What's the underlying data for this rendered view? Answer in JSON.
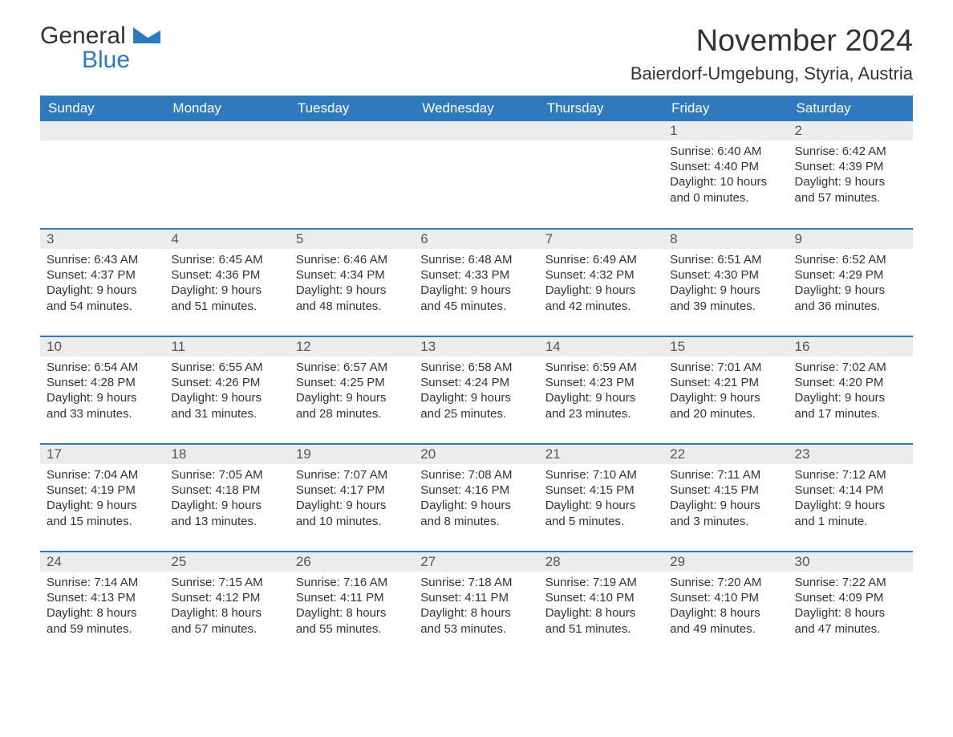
{
  "logo": {
    "text1": "General",
    "text2": "Blue",
    "color_general": "#333333",
    "color_blue": "#2c7abf",
    "shape_color": "#2c7abf"
  },
  "header": {
    "month_title": "November 2024",
    "location": "Baierdorf-Umgebung, Styria, Austria",
    "title_fontsize": 38,
    "location_fontsize": 22,
    "title_color": "#333333"
  },
  "colors": {
    "header_bg": "#3179bd",
    "header_text": "#ffffff",
    "row_border": "#3179bd",
    "daynum_bg": "#ececec",
    "daynum_text": "#555555",
    "body_text": "#333333",
    "page_bg": "#ffffff"
  },
  "typography": {
    "cell_fontsize": 15,
    "header_fontsize": 17,
    "daynum_fontsize": 17
  },
  "weekdays": [
    "Sunday",
    "Monday",
    "Tuesday",
    "Wednesday",
    "Thursday",
    "Friday",
    "Saturday"
  ],
  "weeks": [
    [
      null,
      null,
      null,
      null,
      null,
      {
        "n": "1",
        "sunrise": "Sunrise: 6:40 AM",
        "sunset": "Sunset: 4:40 PM",
        "day1": "Daylight: 10 hours",
        "day2": "and 0 minutes."
      },
      {
        "n": "2",
        "sunrise": "Sunrise: 6:42 AM",
        "sunset": "Sunset: 4:39 PM",
        "day1": "Daylight: 9 hours",
        "day2": "and 57 minutes."
      }
    ],
    [
      {
        "n": "3",
        "sunrise": "Sunrise: 6:43 AM",
        "sunset": "Sunset: 4:37 PM",
        "day1": "Daylight: 9 hours",
        "day2": "and 54 minutes."
      },
      {
        "n": "4",
        "sunrise": "Sunrise: 6:45 AM",
        "sunset": "Sunset: 4:36 PM",
        "day1": "Daylight: 9 hours",
        "day2": "and 51 minutes."
      },
      {
        "n": "5",
        "sunrise": "Sunrise: 6:46 AM",
        "sunset": "Sunset: 4:34 PM",
        "day1": "Daylight: 9 hours",
        "day2": "and 48 minutes."
      },
      {
        "n": "6",
        "sunrise": "Sunrise: 6:48 AM",
        "sunset": "Sunset: 4:33 PM",
        "day1": "Daylight: 9 hours",
        "day2": "and 45 minutes."
      },
      {
        "n": "7",
        "sunrise": "Sunrise: 6:49 AM",
        "sunset": "Sunset: 4:32 PM",
        "day1": "Daylight: 9 hours",
        "day2": "and 42 minutes."
      },
      {
        "n": "8",
        "sunrise": "Sunrise: 6:51 AM",
        "sunset": "Sunset: 4:30 PM",
        "day1": "Daylight: 9 hours",
        "day2": "and 39 minutes."
      },
      {
        "n": "9",
        "sunrise": "Sunrise: 6:52 AM",
        "sunset": "Sunset: 4:29 PM",
        "day1": "Daylight: 9 hours",
        "day2": "and 36 minutes."
      }
    ],
    [
      {
        "n": "10",
        "sunrise": "Sunrise: 6:54 AM",
        "sunset": "Sunset: 4:28 PM",
        "day1": "Daylight: 9 hours",
        "day2": "and 33 minutes."
      },
      {
        "n": "11",
        "sunrise": "Sunrise: 6:55 AM",
        "sunset": "Sunset: 4:26 PM",
        "day1": "Daylight: 9 hours",
        "day2": "and 31 minutes."
      },
      {
        "n": "12",
        "sunrise": "Sunrise: 6:57 AM",
        "sunset": "Sunset: 4:25 PM",
        "day1": "Daylight: 9 hours",
        "day2": "and 28 minutes."
      },
      {
        "n": "13",
        "sunrise": "Sunrise: 6:58 AM",
        "sunset": "Sunset: 4:24 PM",
        "day1": "Daylight: 9 hours",
        "day2": "and 25 minutes."
      },
      {
        "n": "14",
        "sunrise": "Sunrise: 6:59 AM",
        "sunset": "Sunset: 4:23 PM",
        "day1": "Daylight: 9 hours",
        "day2": "and 23 minutes."
      },
      {
        "n": "15",
        "sunrise": "Sunrise: 7:01 AM",
        "sunset": "Sunset: 4:21 PM",
        "day1": "Daylight: 9 hours",
        "day2": "and 20 minutes."
      },
      {
        "n": "16",
        "sunrise": "Sunrise: 7:02 AM",
        "sunset": "Sunset: 4:20 PM",
        "day1": "Daylight: 9 hours",
        "day2": "and 17 minutes."
      }
    ],
    [
      {
        "n": "17",
        "sunrise": "Sunrise: 7:04 AM",
        "sunset": "Sunset: 4:19 PM",
        "day1": "Daylight: 9 hours",
        "day2": "and 15 minutes."
      },
      {
        "n": "18",
        "sunrise": "Sunrise: 7:05 AM",
        "sunset": "Sunset: 4:18 PM",
        "day1": "Daylight: 9 hours",
        "day2": "and 13 minutes."
      },
      {
        "n": "19",
        "sunrise": "Sunrise: 7:07 AM",
        "sunset": "Sunset: 4:17 PM",
        "day1": "Daylight: 9 hours",
        "day2": "and 10 minutes."
      },
      {
        "n": "20",
        "sunrise": "Sunrise: 7:08 AM",
        "sunset": "Sunset: 4:16 PM",
        "day1": "Daylight: 9 hours",
        "day2": "and 8 minutes."
      },
      {
        "n": "21",
        "sunrise": "Sunrise: 7:10 AM",
        "sunset": "Sunset: 4:15 PM",
        "day1": "Daylight: 9 hours",
        "day2": "and 5 minutes."
      },
      {
        "n": "22",
        "sunrise": "Sunrise: 7:11 AM",
        "sunset": "Sunset: 4:15 PM",
        "day1": "Daylight: 9 hours",
        "day2": "and 3 minutes."
      },
      {
        "n": "23",
        "sunrise": "Sunrise: 7:12 AM",
        "sunset": "Sunset: 4:14 PM",
        "day1": "Daylight: 9 hours",
        "day2": "and 1 minute."
      }
    ],
    [
      {
        "n": "24",
        "sunrise": "Sunrise: 7:14 AM",
        "sunset": "Sunset: 4:13 PM",
        "day1": "Daylight: 8 hours",
        "day2": "and 59 minutes."
      },
      {
        "n": "25",
        "sunrise": "Sunrise: 7:15 AM",
        "sunset": "Sunset: 4:12 PM",
        "day1": "Daylight: 8 hours",
        "day2": "and 57 minutes."
      },
      {
        "n": "26",
        "sunrise": "Sunrise: 7:16 AM",
        "sunset": "Sunset: 4:11 PM",
        "day1": "Daylight: 8 hours",
        "day2": "and 55 minutes."
      },
      {
        "n": "27",
        "sunrise": "Sunrise: 7:18 AM",
        "sunset": "Sunset: 4:11 PM",
        "day1": "Daylight: 8 hours",
        "day2": "and 53 minutes."
      },
      {
        "n": "28",
        "sunrise": "Sunrise: 7:19 AM",
        "sunset": "Sunset: 4:10 PM",
        "day1": "Daylight: 8 hours",
        "day2": "and 51 minutes."
      },
      {
        "n": "29",
        "sunrise": "Sunrise: 7:20 AM",
        "sunset": "Sunset: 4:10 PM",
        "day1": "Daylight: 8 hours",
        "day2": "and 49 minutes."
      },
      {
        "n": "30",
        "sunrise": "Sunrise: 7:22 AM",
        "sunset": "Sunset: 4:09 PM",
        "day1": "Daylight: 8 hours",
        "day2": "and 47 minutes."
      }
    ]
  ]
}
